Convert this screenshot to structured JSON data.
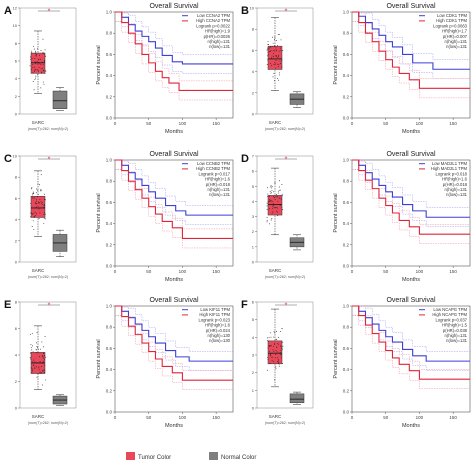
{
  "figure": {
    "legend": {
      "tumor": "Tumor Color",
      "normal": "Normal Color"
    }
  },
  "colors": {
    "tumor": "#e8485a",
    "normal": "#7f7f7f",
    "low": "#3d3fd6",
    "high": "#e0243a",
    "low_ci": "#9a9cf0",
    "high_ci": "#f0909c",
    "sig": "#e0243a"
  },
  "chart_data": [
    {
      "panel": "A",
      "boxplot": {
        "category": "SARC",
        "n_label": "(num(T)=262; num(N)=2)",
        "ylim": [
          0,
          12
        ],
        "yticks": [
          0,
          2,
          4,
          6,
          8,
          10,
          12
        ],
        "tumor": {
          "min": 2.3,
          "q1": 4.6,
          "median": 5.8,
          "q3": 6.9,
          "max": 9.4
        },
        "normal": {
          "min": 0.4,
          "q1": 0.6,
          "median": 1.5,
          "q3": 2.6,
          "max": 3.0
        },
        "significant": "*"
      },
      "survival": {
        "type": "line",
        "title": "Overall Survival",
        "xlabel": "Months",
        "ylabel": "Percent survival",
        "xlim": [
          0,
          175
        ],
        "ylim": [
          0,
          1
        ],
        "xticks": [
          0,
          50,
          100,
          150
        ],
        "yticks": [
          0,
          0.2,
          0.4,
          0.6,
          0.8,
          1.0
        ],
        "legend": [
          "Low CCNA2 TPM",
          "High CCNA2 TPM",
          "Logrank p=0.0022",
          "HR(high)=1.9",
          "p(HR)=0.0026",
          "n(high)=131",
          "n(low)=131"
        ],
        "series": [
          {
            "name": "Low CCNA2 TPM",
            "x": [
              0,
              10,
              20,
              30,
              40,
              50,
              60,
              70,
              85,
              100,
              175
            ],
            "y": [
              1.0,
              0.95,
              0.88,
              0.82,
              0.77,
              0.72,
              0.66,
              0.59,
              0.53,
              0.51,
              0.51
            ]
          },
          {
            "name": "High CCNA2 TPM",
            "x": [
              0,
              10,
              20,
              30,
              40,
              50,
              60,
              70,
              80,
              95,
              175
            ],
            "y": [
              1.0,
              0.9,
              0.8,
              0.7,
              0.6,
              0.52,
              0.44,
              0.38,
              0.33,
              0.26,
              0.26
            ]
          }
        ]
      }
    },
    {
      "panel": "B",
      "boxplot": {
        "category": "SARC",
        "n_label": "(num(T)=262; num(N)=2)",
        "ylim": [
          0,
          10
        ],
        "yticks": [
          0,
          2,
          4,
          6,
          8,
          10
        ],
        "tumor": {
          "min": 2.2,
          "q1": 4.2,
          "median": 5.2,
          "q3": 6.4,
          "max": 9.1
        },
        "normal": {
          "min": 0.6,
          "q1": 0.9,
          "median": 1.4,
          "q3": 1.9,
          "max": 2.1
        },
        "significant": "*"
      },
      "survival": {
        "type": "line",
        "title": "Overall Survival",
        "xlabel": "Months",
        "ylabel": "Percent survival",
        "xlim": [
          0,
          175
        ],
        "ylim": [
          0,
          1
        ],
        "xticks": [
          0,
          50,
          100,
          150
        ],
        "yticks": [
          0,
          0.2,
          0.4,
          0.6,
          0.8,
          1.0
        ],
        "legend": [
          "Low CDK1 TPM",
          "High CDK1 TPM",
          "Logrank p=0.0063",
          "HR(high)=1.7",
          "p(HR)=0.007",
          "n(high)=131",
          "n(low)=131"
        ],
        "series": [
          {
            "name": "Low CDK1 TPM",
            "x": [
              0,
              10,
              20,
              30,
              40,
              50,
              60,
              75,
              90,
              120,
              175
            ],
            "y": [
              1.0,
              0.96,
              0.9,
              0.84,
              0.78,
              0.72,
              0.67,
              0.6,
              0.52,
              0.46,
              0.46
            ]
          },
          {
            "name": "High CDK1 TPM",
            "x": [
              0,
              10,
              20,
              30,
              40,
              50,
              60,
              70,
              85,
              100,
              175
            ],
            "y": [
              1.0,
              0.9,
              0.8,
              0.72,
              0.63,
              0.55,
              0.48,
              0.42,
              0.36,
              0.28,
              0.28
            ]
          }
        ]
      }
    },
    {
      "panel": "C",
      "boxplot": {
        "category": "SARC",
        "n_label": "(num(T)=262; num(N)=2)",
        "ylim": [
          0,
          10
        ],
        "yticks": [
          0,
          2,
          4,
          6,
          8,
          10
        ],
        "tumor": {
          "min": 2.4,
          "q1": 4.2,
          "median": 5.1,
          "q3": 6.2,
          "max": 8.6
        },
        "normal": {
          "min": 0.5,
          "q1": 1.0,
          "median": 1.8,
          "q3": 2.6,
          "max": 3.0
        },
        "significant": "*"
      },
      "survival": {
        "type": "line",
        "title": "Overall Survival",
        "xlabel": "Months",
        "ylabel": "Percent survival",
        "xlim": [
          0,
          175
        ],
        "ylim": [
          0,
          1
        ],
        "xticks": [
          0,
          50,
          100,
          150
        ],
        "yticks": [
          0,
          0.2,
          0.4,
          0.6,
          0.8,
          1.0
        ],
        "legend": [
          "Low CCNB2 TPM",
          "High CCNB2 TPM",
          "Logrank p=0.017",
          "HR(high)=1.6",
          "p(HR)=0.018",
          "n(high)=131",
          "n(low)=131"
        ],
        "series": [
          {
            "name": "Low CCNB2 TPM",
            "x": [
              0,
              10,
              20,
              30,
              40,
              50,
              60,
              75,
              90,
              105,
              175
            ],
            "y": [
              1.0,
              0.95,
              0.88,
              0.82,
              0.76,
              0.7,
              0.64,
              0.57,
              0.52,
              0.48,
              0.48
            ]
          },
          {
            "name": "High CCNB2 TPM",
            "x": [
              0,
              10,
              20,
              30,
              40,
              50,
              60,
              70,
              85,
              100,
              175
            ],
            "y": [
              1.0,
              0.9,
              0.8,
              0.72,
              0.64,
              0.56,
              0.49,
              0.42,
              0.36,
              0.26,
              0.26
            ]
          }
        ]
      }
    },
    {
      "panel": "D",
      "boxplot": {
        "category": "SARC",
        "n_label": "(num(T)=262; num(N)=2)",
        "ylim": [
          0,
          7
        ],
        "yticks": [
          0,
          1,
          2,
          3,
          4,
          5,
          6,
          7
        ],
        "tumor": {
          "min": 1.8,
          "q1": 3.1,
          "median": 3.8,
          "q3": 4.4,
          "max": 6.2
        },
        "normal": {
          "min": 0.8,
          "q1": 1.0,
          "median": 1.3,
          "q3": 1.6,
          "max": 1.8
        },
        "significant": "*"
      },
      "survival": {
        "type": "line",
        "title": "Overall Survival",
        "xlabel": "Months",
        "ylabel": "Percent survival",
        "xlim": [
          0,
          175
        ],
        "ylim": [
          0,
          1
        ],
        "xticks": [
          0,
          50,
          100,
          150
        ],
        "yticks": [
          0,
          0.2,
          0.4,
          0.6,
          0.8,
          1.0
        ],
        "legend": [
          "Low MAD2L1 TPM",
          "High MAD2L1 TPM",
          "Logrank p=0.018",
          "HR(high)=1.6",
          "p(HR)=0.018",
          "n(high)=131",
          "n(low)=131"
        ],
        "series": [
          {
            "name": "Low MAD2L1 TPM",
            "x": [
              0,
              10,
              20,
              30,
              40,
              50,
              60,
              75,
              90,
              110,
              175
            ],
            "y": [
              1.0,
              0.95,
              0.88,
              0.82,
              0.76,
              0.7,
              0.65,
              0.58,
              0.52,
              0.46,
              0.46
            ]
          },
          {
            "name": "High MAD2L1 TPM",
            "x": [
              0,
              10,
              20,
              30,
              40,
              50,
              60,
              70,
              85,
              100,
              175
            ],
            "y": [
              1.0,
              0.9,
              0.81,
              0.73,
              0.64,
              0.57,
              0.5,
              0.43,
              0.37,
              0.3,
              0.3
            ]
          }
        ]
      }
    },
    {
      "panel": "E",
      "boxplot": {
        "category": "SARC",
        "n_label": "(num(T)=262; num(N)=2)",
        "ylim": [
          0,
          8
        ],
        "yticks": [
          0,
          2,
          4,
          6,
          8
        ],
        "tumor": {
          "min": 1.4,
          "q1": 2.6,
          "median": 3.4,
          "q3": 4.2,
          "max": 6.2
        },
        "normal": {
          "min": 0.2,
          "q1": 0.3,
          "median": 0.6,
          "q3": 0.9,
          "max": 1.0
        },
        "significant": "*"
      },
      "survival": {
        "type": "line",
        "title": "Overall Survival",
        "xlabel": "Months",
        "ylabel": "Percent survival",
        "xlim": [
          0,
          175
        ],
        "ylim": [
          0,
          1
        ],
        "xticks": [
          0,
          50,
          100,
          150
        ],
        "yticks": [
          0,
          0.2,
          0.4,
          0.6,
          0.8,
          1.0
        ],
        "legend": [
          "Low KIF11 TPM",
          "High KIF11 TPM",
          "Logrank p=0.023",
          "HR(high)=1.6",
          "p(HR)=0.024",
          "n(high)=130",
          "n(low)=130"
        ],
        "series": [
          {
            "name": "Low KIF11 TPM",
            "x": [
              0,
              10,
              20,
              30,
              40,
              50,
              60,
              75,
              90,
              110,
              175
            ],
            "y": [
              1.0,
              0.95,
              0.89,
              0.83,
              0.77,
              0.71,
              0.65,
              0.58,
              0.52,
              0.48,
              0.48
            ]
          },
          {
            "name": "High KIF11 TPM",
            "x": [
              0,
              10,
              20,
              30,
              40,
              50,
              60,
              70,
              85,
              100,
              175
            ],
            "y": [
              1.0,
              0.9,
              0.81,
              0.73,
              0.65,
              0.57,
              0.5,
              0.43,
              0.37,
              0.3,
              0.3
            ]
          }
        ]
      }
    },
    {
      "panel": "F",
      "boxplot": {
        "category": "SARC",
        "n_label": "(num(T)=262; num(N)=2)",
        "ylim": [
          0,
          6
        ],
        "yticks": [
          0,
          1,
          2,
          3,
          4,
          5,
          6
        ],
        "tumor": {
          "min": 1.2,
          "q1": 2.5,
          "median": 3.1,
          "q3": 3.8,
          "max": 5.6
        },
        "normal": {
          "min": 0.2,
          "q1": 0.3,
          "median": 0.5,
          "q3": 0.8,
          "max": 0.9
        },
        "significant": "*"
      },
      "survival": {
        "type": "line",
        "title": "Overall Survival",
        "xlabel": "Months",
        "ylabel": "Percent survival",
        "xlim": [
          0,
          175
        ],
        "ylim": [
          0,
          1
        ],
        "xticks": [
          0,
          50,
          100,
          150
        ],
        "yticks": [
          0,
          0.2,
          0.4,
          0.6,
          0.8,
          1.0
        ],
        "legend": [
          "Low NCAPG TPM",
          "High NCAPG TPM",
          "Logrank p=0.037",
          "HR(high)=1.5",
          "p(HR)=0.038",
          "n(high)=131",
          "n(low)=131"
        ],
        "series": [
          {
            "name": "Low NCAPG TPM",
            "x": [
              0,
              10,
              20,
              30,
              40,
              50,
              60,
              75,
              90,
              110,
              175
            ],
            "y": [
              1.0,
              0.95,
              0.89,
              0.83,
              0.77,
              0.71,
              0.66,
              0.59,
              0.53,
              0.48,
              0.48
            ]
          },
          {
            "name": "High NCAPG TPM",
            "x": [
              0,
              10,
              20,
              30,
              40,
              50,
              60,
              70,
              85,
              100,
              175
            ],
            "y": [
              1.0,
              0.91,
              0.82,
              0.74,
              0.66,
              0.58,
              0.51,
              0.45,
              0.39,
              0.31,
              0.31
            ]
          }
        ]
      }
    }
  ]
}
